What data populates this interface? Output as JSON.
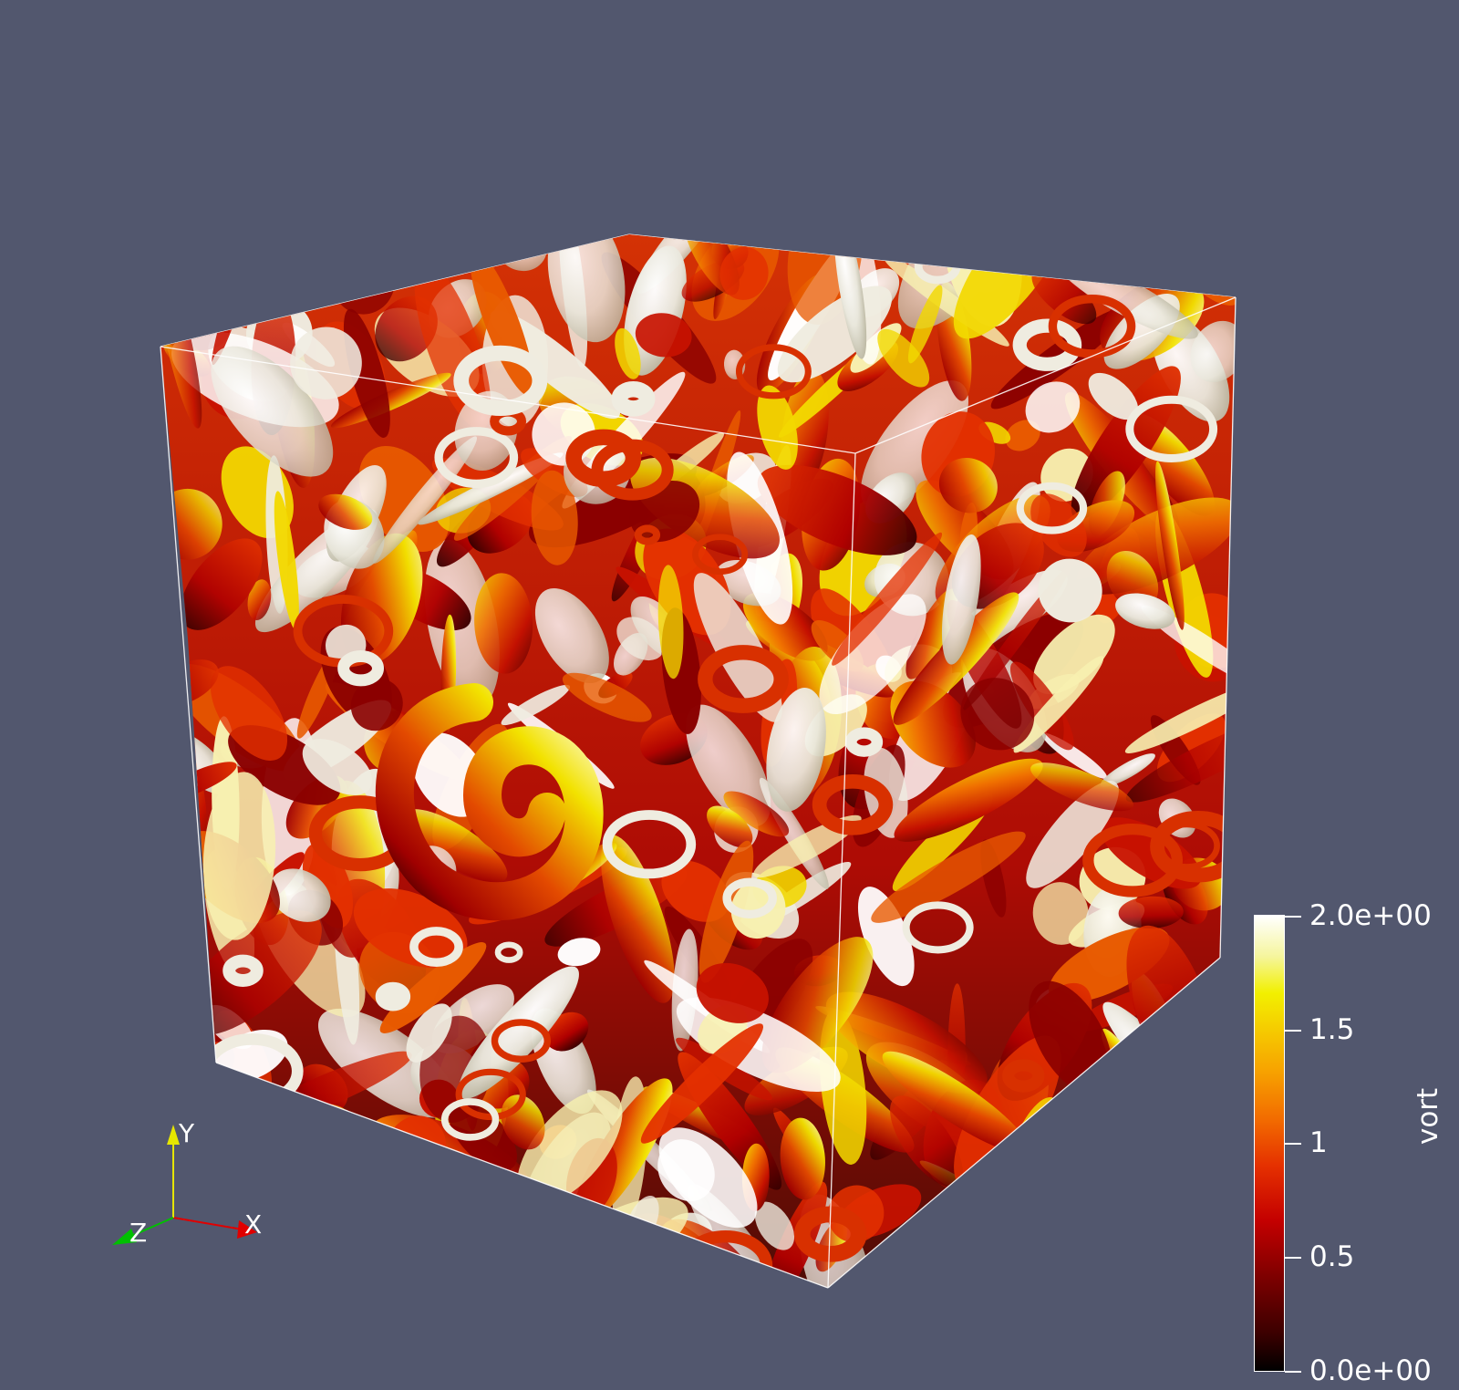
{
  "colorbar": {
    "title": "vort",
    "labels": [
      "2.0e+00",
      "1.5",
      "1",
      "0.5",
      "0.0e+00"
    ],
    "range": [
      0.0,
      2.0
    ],
    "colormap": [
      "#000000",
      "#7a0000",
      "#c40000",
      "#f26a00",
      "#f5d000",
      "#f2f000",
      "#ffffff"
    ]
  },
  "orientation_axes": {
    "x_label": "X",
    "y_label": "Y",
    "z_label": "Z",
    "x_color": "#e00000",
    "y_color": "#e6e600",
    "z_color": "#00c000"
  },
  "scene": {
    "background": "#52576e",
    "outline_color": "#ffffff",
    "subject": "vorticity isosurfaces colored by vort inside a cubic domain"
  }
}
